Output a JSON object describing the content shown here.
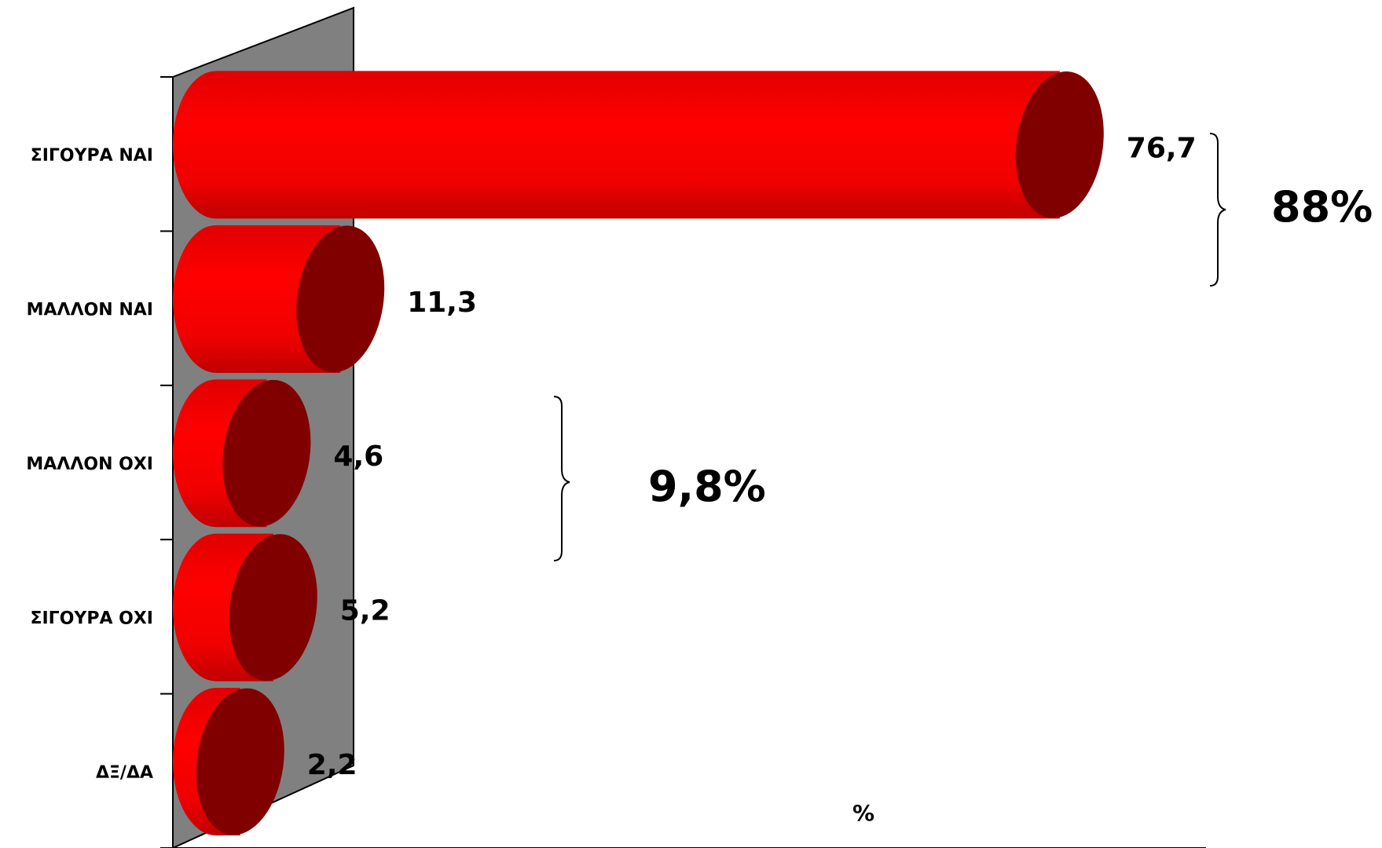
{
  "chart_data": {
    "type": "bar",
    "orientation": "horizontal",
    "style": "3d-cylinder",
    "categories": [
      "ΣΙΓΟΥΡΑ ΝΑΙ",
      "ΜΑΛΛΟΝ ΝΑΙ",
      "ΜΑΛΛΟΝ ΟΧΙ",
      "ΣΙΓΟΥΡΑ ΟΧΙ",
      "ΔΞ/ΔΑ"
    ],
    "values": [
      76.7,
      11.3,
      4.6,
      5.2,
      2.2
    ],
    "value_labels": [
      "76,7",
      "11,3",
      "4,6",
      "5,2",
      "2,2"
    ],
    "xlabel": "%",
    "xlim": [
      0,
      100
    ],
    "grid": false,
    "legend": "none",
    "colors": {
      "bar_side": "#ff0000",
      "bar_end": "#800000",
      "back_wall": "#808080"
    },
    "group_annotations": [
      {
        "label": "88%",
        "categories": [
          "ΣΙΓΟΥΡΑ ΝΑΙ",
          "ΜΑΛΛΟΝ ΝΑΙ"
        ]
      },
      {
        "label": "9,8%",
        "categories": [
          "ΜΑΛΛΟΝ ΟΧΙ",
          "ΣΙΓΟΥΡΑ ΟΧΙ"
        ]
      }
    ]
  }
}
